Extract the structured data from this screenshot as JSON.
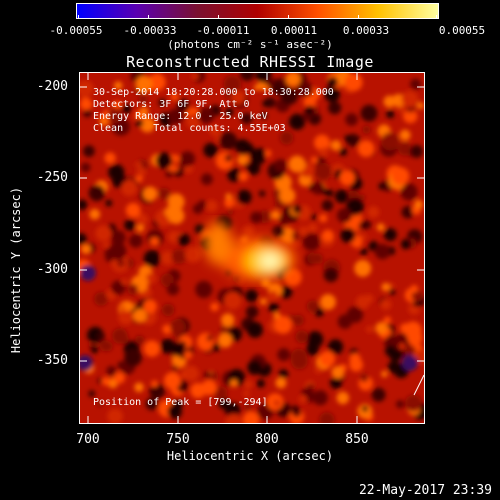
{
  "colorbar": {
    "ticks": [
      "-0.00055",
      "-0.00033",
      "-0.00011",
      "0.00011",
      "0.00033",
      "0.00055"
    ],
    "colors": [
      "#0000ff",
      "#5a00b0",
      "#7a1030",
      "#b00000",
      "#ff5000",
      "#ffc000",
      "#ffffa0"
    ]
  },
  "units": "(photons cm⁻² s⁻¹ asec⁻²)",
  "title": "Reconstructed RHESSI Image",
  "annotations": {
    "time": "30-Sep-2014 18:20:28.000 to 18:30:28.000",
    "detectors": "Detectors: 3F 6F 9F, Att 0",
    "energy": "Energy Range: 12.0 - 25.0 keV",
    "clean": "Clean     Total counts: 4.55E+03",
    "peak": "Position of Peak = [799,-294]"
  },
  "axes": {
    "xlabel": "Heliocentric X (arcsec)",
    "ylabel": "Heliocentric Y (arcsec)",
    "xticks": [
      "700",
      "750",
      "800",
      "850"
    ],
    "yticks": [
      "-200",
      "-250",
      "-300",
      "-350"
    ]
  },
  "footer": "22-May-2017 23:39",
  "image_data": {
    "peak_position": [
      799,
      -294
    ],
    "x_range": [
      695,
      885
    ],
    "y_range": [
      -380,
      -187
    ]
  }
}
